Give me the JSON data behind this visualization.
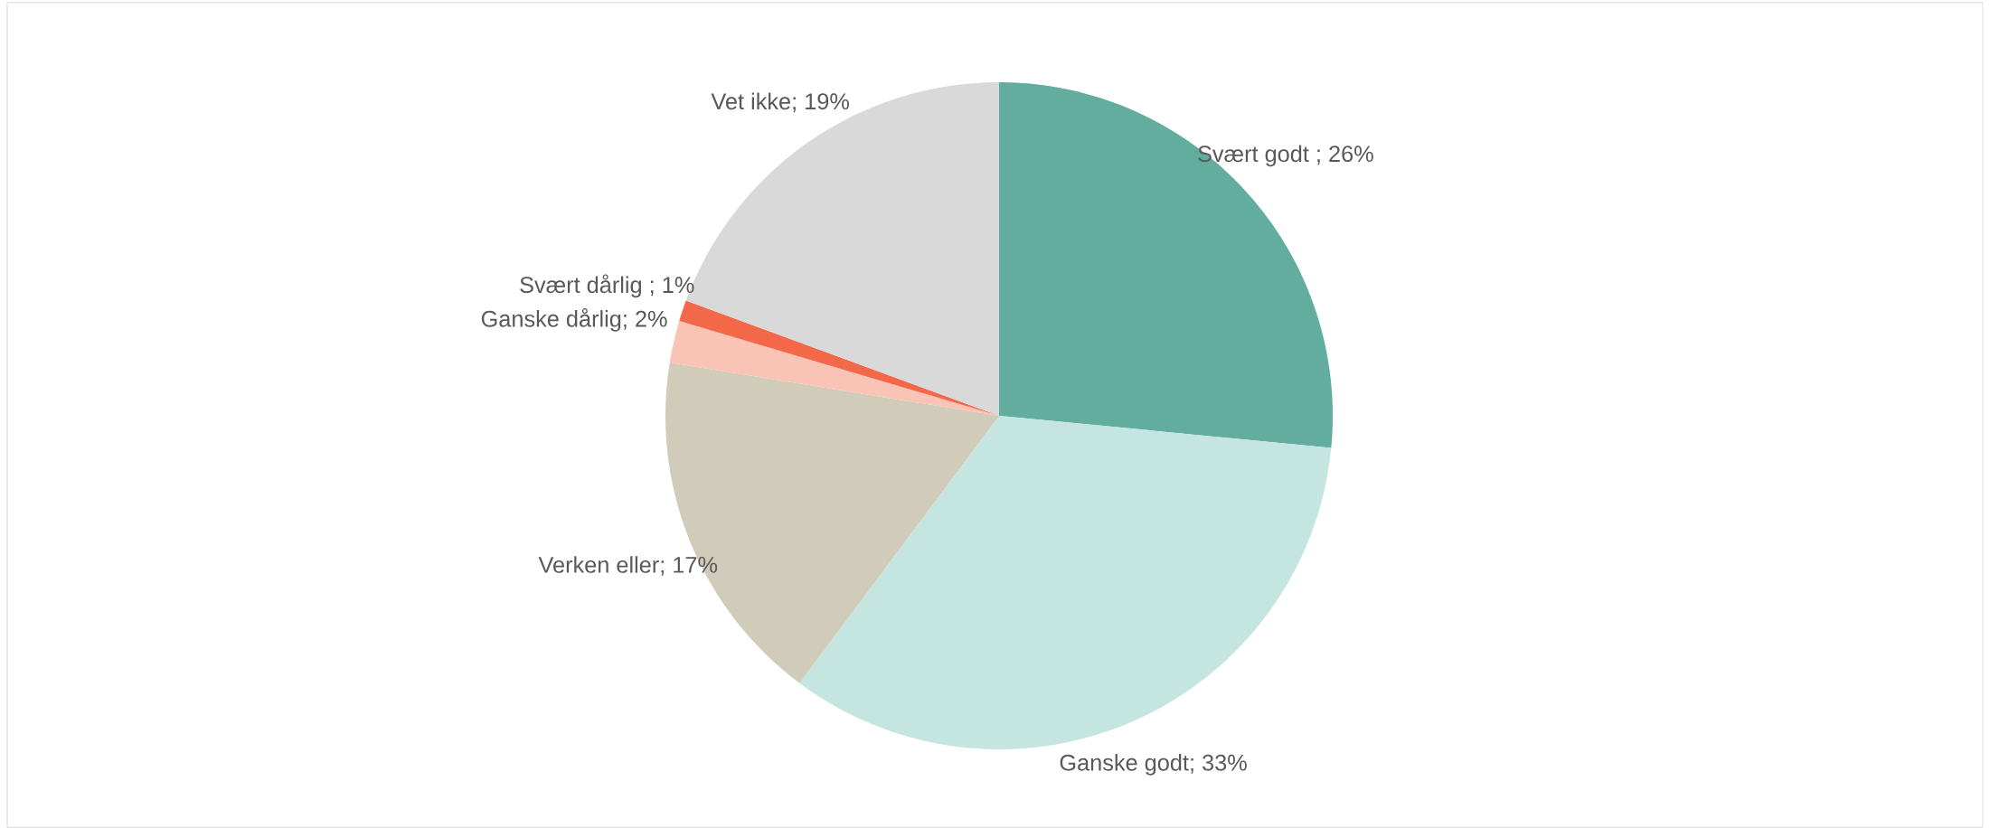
{
  "chart_data": {
    "type": "pie",
    "categories": [
      "Svært godt ; 26%",
      "Ganske godt; 33%",
      "Verken eller; 17%",
      "Ganske dårlig; 2%",
      "Svært dårlig ; 1%",
      "Vet ikke; 19%"
    ],
    "values": [
      26,
      33,
      17,
      2,
      1,
      19
    ],
    "colors": [
      "#63ad9f",
      "#c5e6e0",
      "#d1cbb9",
      "#f9c3b6",
      "#f26849",
      "#d9d9d9"
    ]
  }
}
